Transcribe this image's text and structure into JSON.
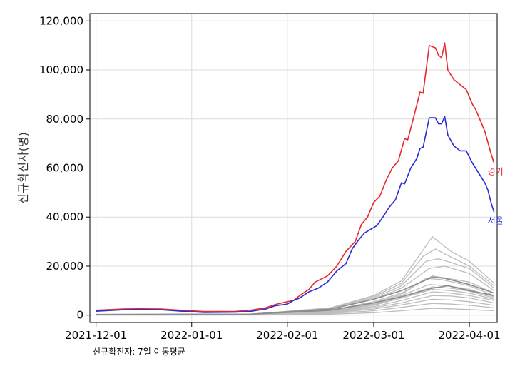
{
  "chart_data": {
    "type": "line",
    "ylabel": "신규확진자(명)",
    "caption": "신규확진자: 7일 이동평균",
    "x_ticks": [
      "2021-12-01",
      "2022-01-01",
      "2022-02-01",
      "2022-03-01",
      "2022-04-01"
    ],
    "y_ticks": [
      "0",
      "20,000",
      "40,000",
      "60,000",
      "80,000",
      "100,000",
      "120,000"
    ],
    "xlim": [
      "2021-11-29",
      "2022-04-10"
    ],
    "ylim": [
      -3000,
      123000
    ],
    "grid": true,
    "highlighted_series": [
      {
        "name": "경기",
        "color": "#e8262b",
        "points": [
          [
            "2021-12-01",
            2000
          ],
          [
            "2021-12-10",
            2500
          ],
          [
            "2021-12-15",
            2600
          ],
          [
            "2021-12-22",
            2500
          ],
          [
            "2021-12-30",
            1900
          ],
          [
            "2022-01-05",
            1500
          ],
          [
            "2022-01-15",
            1500
          ],
          [
            "2022-01-20",
            2000
          ],
          [
            "2022-01-25",
            3000
          ],
          [
            "2022-01-28",
            4300
          ],
          [
            "2022-02-01",
            5500
          ],
          [
            "2022-02-03",
            6000
          ],
          [
            "2022-02-05",
            8000
          ],
          [
            "2022-02-08",
            10500
          ],
          [
            "2022-02-10",
            13500
          ],
          [
            "2022-02-14",
            16000
          ],
          [
            "2022-02-17",
            20000
          ],
          [
            "2022-02-20",
            26000
          ],
          [
            "2022-02-23",
            30000
          ],
          [
            "2022-02-25",
            37000
          ],
          [
            "2022-02-27",
            40000
          ],
          [
            "2022-03-01",
            46000
          ],
          [
            "2022-03-03",
            48500
          ],
          [
            "2022-03-05",
            55000
          ],
          [
            "2022-03-07",
            60000
          ],
          [
            "2022-03-09",
            63000
          ],
          [
            "2022-03-11",
            72000
          ],
          [
            "2022-03-12",
            71500
          ],
          [
            "2022-03-14",
            81000
          ],
          [
            "2022-03-16",
            91000
          ],
          [
            "2022-03-17",
            90500
          ],
          [
            "2022-03-19",
            110000
          ],
          [
            "2022-03-21",
            109000
          ],
          [
            "2022-03-22",
            106000
          ],
          [
            "2022-03-23",
            105000
          ],
          [
            "2022-03-24",
            111000
          ],
          [
            "2022-03-25",
            100000
          ],
          [
            "2022-03-27",
            96000
          ],
          [
            "2022-03-29",
            94000
          ],
          [
            "2022-03-31",
            92000
          ],
          [
            "2022-04-02",
            86000
          ],
          [
            "2022-04-03",
            84000
          ],
          [
            "2022-04-05",
            78000
          ],
          [
            "2022-04-06",
            75000
          ],
          [
            "2022-04-08",
            66000
          ],
          [
            "2022-04-09",
            62000
          ]
        ]
      },
      {
        "name": "서울",
        "color": "#2b2bd6",
        "points": [
          [
            "2021-12-01",
            1600
          ],
          [
            "2021-12-10",
            2200
          ],
          [
            "2021-12-15",
            2300
          ],
          [
            "2021-12-22",
            2200
          ],
          [
            "2021-12-30",
            1500
          ],
          [
            "2022-01-05",
            1100
          ],
          [
            "2022-01-15",
            1200
          ],
          [
            "2022-01-20",
            1500
          ],
          [
            "2022-01-25",
            2500
          ],
          [
            "2022-01-28",
            3800
          ],
          [
            "2022-02-01",
            4500
          ],
          [
            "2022-02-03",
            6000
          ],
          [
            "2022-02-05",
            7000
          ],
          [
            "2022-02-08",
            9500
          ],
          [
            "2022-02-11",
            11000
          ],
          [
            "2022-02-14",
            13500
          ],
          [
            "2022-02-17",
            18000
          ],
          [
            "2022-02-20",
            21000
          ],
          [
            "2022-02-22",
            27000
          ],
          [
            "2022-02-24",
            30500
          ],
          [
            "2022-02-26",
            33500
          ],
          [
            "2022-02-28",
            35000
          ],
          [
            "2022-03-02",
            36500
          ],
          [
            "2022-03-04",
            40000
          ],
          [
            "2022-03-06",
            44000
          ],
          [
            "2022-03-08",
            47000
          ],
          [
            "2022-03-10",
            54000
          ],
          [
            "2022-03-11",
            53500
          ],
          [
            "2022-03-13",
            60000
          ],
          [
            "2022-03-15",
            64000
          ],
          [
            "2022-03-16",
            68000
          ],
          [
            "2022-03-17",
            68500
          ],
          [
            "2022-03-19",
            80500
          ],
          [
            "2022-03-21",
            80500
          ],
          [
            "2022-03-22",
            78000
          ],
          [
            "2022-03-23",
            78000
          ],
          [
            "2022-03-24",
            81000
          ],
          [
            "2022-03-25",
            73500
          ],
          [
            "2022-03-27",
            69000
          ],
          [
            "2022-03-29",
            67000
          ],
          [
            "2022-03-31",
            67000
          ],
          [
            "2022-04-02",
            62000
          ],
          [
            "2022-04-04",
            58000
          ],
          [
            "2022-04-06",
            54000
          ],
          [
            "2022-04-07",
            51000
          ],
          [
            "2022-04-08",
            46000
          ],
          [
            "2022-04-09",
            42000
          ]
        ]
      }
    ],
    "background_series_color": "#bdbdbd",
    "background_series": [
      {
        "points": [
          [
            "2021-12-01",
            300
          ],
          [
            "2022-01-20",
            400
          ],
          [
            "2022-02-15",
            3000
          ],
          [
            "2022-03-01",
            8000
          ],
          [
            "2022-03-10",
            14000
          ],
          [
            "2022-03-20",
            32000
          ],
          [
            "2022-03-23",
            29000
          ],
          [
            "2022-03-26",
            26000
          ],
          [
            "2022-04-01",
            22000
          ],
          [
            "2022-04-09",
            13000
          ]
        ]
      },
      {
        "points": [
          [
            "2021-12-01",
            300
          ],
          [
            "2022-01-20",
            400
          ],
          [
            "2022-02-15",
            2800
          ],
          [
            "2022-03-01",
            7500
          ],
          [
            "2022-03-10",
            13000
          ],
          [
            "2022-03-17",
            24000
          ],
          [
            "2022-03-21",
            27000
          ],
          [
            "2022-03-24",
            25000
          ],
          [
            "2022-04-01",
            20000
          ],
          [
            "2022-04-09",
            12000
          ]
        ]
      },
      {
        "points": [
          [
            "2021-12-01",
            250
          ],
          [
            "2022-01-20",
            350
          ],
          [
            "2022-02-15",
            2500
          ],
          [
            "2022-03-01",
            7000
          ],
          [
            "2022-03-10",
            12000
          ],
          [
            "2022-03-18",
            22000
          ],
          [
            "2022-03-22",
            23000
          ],
          [
            "2022-03-26",
            21500
          ],
          [
            "2022-04-01",
            19000
          ],
          [
            "2022-04-09",
            11000
          ]
        ]
      },
      {
        "points": [
          [
            "2021-12-01",
            250
          ],
          [
            "2022-01-20",
            350
          ],
          [
            "2022-02-15",
            2400
          ],
          [
            "2022-03-01",
            6500
          ],
          [
            "2022-03-10",
            11000
          ],
          [
            "2022-03-19",
            19000
          ],
          [
            "2022-03-24",
            20000
          ],
          [
            "2022-04-01",
            17000
          ],
          [
            "2022-04-09",
            10000
          ]
        ]
      },
      {
        "points": [
          [
            "2021-12-01",
            200
          ],
          [
            "2022-01-20",
            300
          ],
          [
            "2022-02-15",
            2000
          ],
          [
            "2022-03-01",
            5500
          ],
          [
            "2022-03-10",
            9000
          ],
          [
            "2022-03-20",
            16000
          ],
          [
            "2022-03-25",
            15000
          ],
          [
            "2022-04-01",
            13500
          ],
          [
            "2022-04-09",
            9000
          ]
        ]
      },
      {
        "points": [
          [
            "2021-12-01",
            200
          ],
          [
            "2022-01-20",
            300
          ],
          [
            "2022-02-15",
            1900
          ],
          [
            "2022-03-01",
            5000
          ],
          [
            "2022-03-10",
            8500
          ],
          [
            "2022-03-18",
            15000
          ],
          [
            "2022-03-23",
            14500
          ],
          [
            "2022-04-01",
            12000
          ],
          [
            "2022-04-09",
            8000
          ]
        ]
      },
      {
        "points": [
          [
            "2021-12-01",
            200
          ],
          [
            "2022-01-20",
            300
          ],
          [
            "2022-02-15",
            1800
          ],
          [
            "2022-03-01",
            4600
          ],
          [
            "2022-03-10",
            8000
          ],
          [
            "2022-03-19",
            12500
          ],
          [
            "2022-03-25",
            12000
          ],
          [
            "2022-04-01",
            10500
          ],
          [
            "2022-04-09",
            7500
          ]
        ]
      },
      {
        "points": [
          [
            "2021-12-01",
            150
          ],
          [
            "2022-01-20",
            250
          ],
          [
            "2022-02-15",
            1600
          ],
          [
            "2022-03-01",
            4300
          ],
          [
            "2022-03-10",
            7500
          ],
          [
            "2022-03-20",
            11500
          ],
          [
            "2022-03-26",
            11000
          ],
          [
            "2022-04-01",
            9800
          ],
          [
            "2022-04-09",
            7000
          ]
        ]
      },
      {
        "points": [
          [
            "2021-12-01",
            150
          ],
          [
            "2022-01-20",
            250
          ],
          [
            "2022-02-15",
            1500
          ],
          [
            "2022-03-01",
            4000
          ],
          [
            "2022-03-10",
            7000
          ],
          [
            "2022-03-20",
            10500
          ],
          [
            "2022-03-26",
            10000
          ],
          [
            "2022-04-01",
            9000
          ],
          [
            "2022-04-09",
            6500
          ]
        ]
      },
      {
        "points": [
          [
            "2021-12-01",
            100
          ],
          [
            "2022-01-20",
            200
          ],
          [
            "2022-02-15",
            1300
          ],
          [
            "2022-03-01",
            3500
          ],
          [
            "2022-03-10",
            6000
          ],
          [
            "2022-03-20",
            9500
          ],
          [
            "2022-03-26",
            9000
          ],
          [
            "2022-04-01",
            8000
          ],
          [
            "2022-04-09",
            6000
          ]
        ]
      },
      {
        "points": [
          [
            "2021-12-01",
            100
          ],
          [
            "2022-01-20",
            200
          ],
          [
            "2022-02-15",
            1100
          ],
          [
            "2022-03-01",
            3000
          ],
          [
            "2022-03-10",
            5000
          ],
          [
            "2022-03-20",
            8000
          ],
          [
            "2022-03-26",
            7800
          ],
          [
            "2022-04-01",
            7000
          ],
          [
            "2022-04-09",
            5000
          ]
        ]
      },
      {
        "points": [
          [
            "2021-12-01",
            80
          ],
          [
            "2022-01-20",
            150
          ],
          [
            "2022-02-15",
            900
          ],
          [
            "2022-03-01",
            2500
          ],
          [
            "2022-03-10",
            4200
          ],
          [
            "2022-03-20",
            6500
          ],
          [
            "2022-03-26",
            6200
          ],
          [
            "2022-04-01",
            5500
          ],
          [
            "2022-04-09",
            4000
          ]
        ]
      },
      {
        "points": [
          [
            "2021-12-01",
            50
          ],
          [
            "2022-01-20",
            100
          ],
          [
            "2022-02-15",
            700
          ],
          [
            "2022-03-01",
            1800
          ],
          [
            "2022-03-10",
            3200
          ],
          [
            "2022-03-20",
            4800
          ],
          [
            "2022-03-26",
            4500
          ],
          [
            "2022-04-01",
            4000
          ],
          [
            "2022-04-09",
            3000
          ]
        ]
      },
      {
        "points": [
          [
            "2021-12-01",
            30
          ],
          [
            "2022-01-20",
            60
          ],
          [
            "2022-02-15",
            400
          ],
          [
            "2022-03-01",
            1000
          ],
          [
            "2022-03-10",
            1800
          ],
          [
            "2022-03-20",
            2800
          ],
          [
            "2022-03-26",
            2600
          ],
          [
            "2022-04-01",
            2300
          ],
          [
            "2022-04-09",
            1800
          ]
        ]
      }
    ],
    "background_dark_series_color": "#8c8c8c",
    "background_dark_series": [
      {
        "points": [
          [
            "2021-12-01",
            300
          ],
          [
            "2022-01-20",
            400
          ],
          [
            "2022-02-15",
            2500
          ],
          [
            "2022-03-01",
            6500
          ],
          [
            "2022-03-10",
            10000
          ],
          [
            "2022-03-20",
            15500
          ],
          [
            "2022-03-24",
            15000
          ],
          [
            "2022-04-01",
            12500
          ],
          [
            "2022-04-09",
            9000
          ]
        ]
      },
      {
        "points": [
          [
            "2021-12-01",
            250
          ],
          [
            "2022-01-20",
            350
          ],
          [
            "2022-02-15",
            2000
          ],
          [
            "2022-03-01",
            5000
          ],
          [
            "2022-03-10",
            7500
          ],
          [
            "2022-03-20",
            11000
          ],
          [
            "2022-03-25",
            12000
          ],
          [
            "2022-04-01",
            10000
          ],
          [
            "2022-04-09",
            8000
          ]
        ]
      }
    ]
  }
}
